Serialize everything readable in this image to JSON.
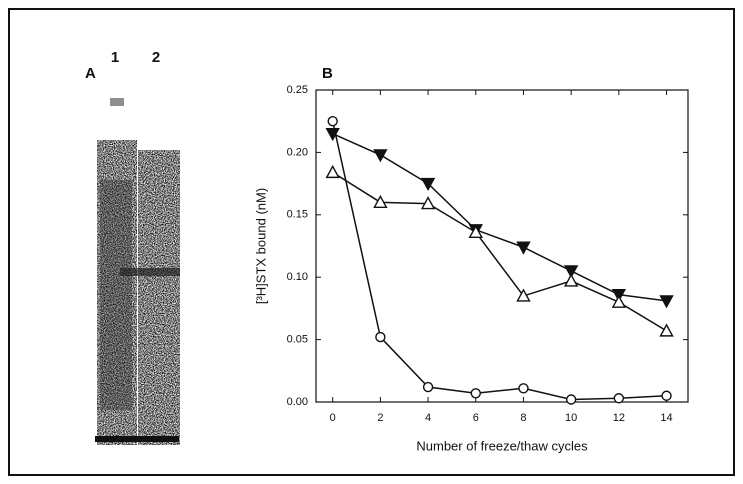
{
  "panel_a": {
    "label": "A",
    "lanes": [
      "1",
      "2"
    ]
  },
  "chart_data": {
    "type": "line",
    "panel_label": "B",
    "x_label": "Number of freeze/thaw cycles",
    "y_label": "[³H]STX bound (nM)",
    "x": [
      0,
      2,
      4,
      6,
      8,
      10,
      12,
      14
    ],
    "series": [
      {
        "color": "#111111",
        "marker": "circle",
        "filled": false,
        "values": [
          0.225,
          0.052,
          0.012,
          0.007,
          0.011,
          0.002,
          0.003,
          0.005
        ]
      },
      {
        "color": "#111111",
        "marker": "triangle-down",
        "filled": true,
        "values": [
          0.215,
          0.198,
          0.175,
          0.138,
          0.124,
          0.105,
          0.086,
          0.081
        ]
      },
      {
        "color": "#111111",
        "marker": "triangle-up",
        "filled": false,
        "values": [
          0.184,
          0.16,
          0.159,
          0.136,
          0.085,
          0.097,
          0.08,
          0.057
        ]
      }
    ],
    "xlim": [
      -0.7,
      14.9
    ],
    "ylim": [
      0,
      0.25
    ],
    "xticks": [
      0,
      2,
      4,
      6,
      8,
      10,
      12,
      14
    ],
    "yticks": [
      {
        "value": 0,
        "label": "0.00"
      },
      {
        "value": 0.05,
        "label": "0.05"
      },
      {
        "value": 0.1,
        "label": "0.10"
      },
      {
        "value": 0.15,
        "label": "0.15"
      },
      {
        "value": 0.2,
        "label": "0.20"
      },
      {
        "value": 0.25,
        "label": "0.25"
      }
    ],
    "grid": false
  }
}
